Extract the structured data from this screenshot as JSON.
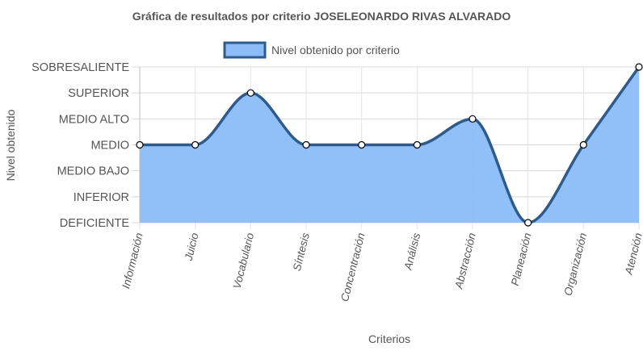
{
  "chart_data": {
    "type": "area",
    "title": "Gráfica de resultados por criterio JOSELEONARDO RIVAS ALVARADO",
    "xlabel": "Criterios",
    "ylabel": "Nivel obtenido",
    "y_levels": [
      "DEFICIENTE",
      "INFERIOR",
      "MEDIO BAJO",
      "MEDIO",
      "MEDIO ALTO",
      "SUPERIOR",
      "SOBRESALIENTE"
    ],
    "ylim": [
      0,
      6
    ],
    "categories": [
      "Información",
      "Juicio",
      "Vocabulario",
      "Síntesis",
      "Concentración",
      "Análisis",
      "Abstracción",
      "Planeación",
      "Organización",
      "Atención"
    ],
    "series": [
      {
        "name": "Nivel obtenido por criterio",
        "values": [
          3,
          3,
          5,
          3,
          3,
          3,
          4,
          0,
          3,
          6
        ],
        "line_color": "#2e5a8c",
        "fill_color": "#8bbcf7"
      }
    ],
    "grid": true,
    "legend": "top"
  }
}
